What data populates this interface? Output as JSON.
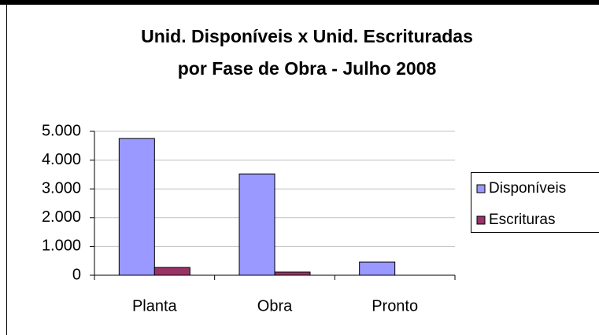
{
  "chart_data": {
    "type": "bar",
    "title": [
      "Unid. Disponíveis x Unid. Escrituradas",
      "por Fase de Obra - Julho 2008"
    ],
    "categories": [
      "Planta",
      "Obra",
      "Pronto"
    ],
    "series": [
      {
        "name": "Disponíveis",
        "color": "#9999ff",
        "values": [
          4750,
          3520,
          460
        ]
      },
      {
        "name": "Escrituras",
        "color": "#993366",
        "values": [
          270,
          110,
          0
        ]
      }
    ],
    "ylim": [
      0,
      5000
    ],
    "yticks": [
      0,
      {
        "value": 1000,
        "label": "1.000"
      },
      {
        "value": 2000,
        "label": "2.000"
      },
      {
        "value": 3000,
        "label": "3.000"
      },
      {
        "value": 4000,
        "label": "4.000"
      },
      {
        "value": 5000,
        "label": "5.000"
      }
    ],
    "grid": true,
    "legend": "right"
  }
}
